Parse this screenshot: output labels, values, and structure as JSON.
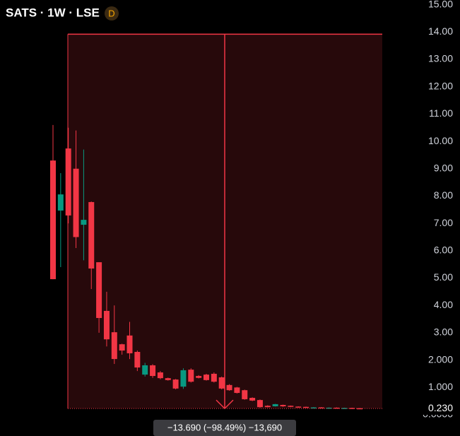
{
  "chart_data": {
    "type": "candlestick",
    "title": "SATS · 1W · LSE",
    "badge": "D",
    "up_color": "#089981",
    "down_color": "#f23645",
    "open": [
      9.3,
      7.47,
      9.74,
      9.0,
      6.95,
      7.78,
      5.58,
      3.8,
      3.02,
      2.58,
      2.9,
      2.3,
      1.47,
      1.81,
      1.55,
      1.34,
      1.29,
      1.03,
      1.65,
      1.42,
      1.47,
      1.5,
      1.37,
      1.09,
      1.0,
      0.9,
      0.62,
      0.54,
      0.33,
      0.31,
      0.36,
      0.33,
      0.3,
      0.29,
      0.27,
      0.27,
      0.26,
      0.26,
      0.25,
      0.25,
      0.24
    ],
    "high": [
      10.6,
      8.84,
      10.5,
      10.4,
      9.7,
      7.8,
      5.58,
      4.5,
      4.0,
      2.6,
      3.4,
      2.35,
      1.9,
      1.85,
      1.6,
      1.36,
      1.31,
      1.7,
      1.7,
      1.45,
      1.5,
      1.55,
      1.4,
      1.12,
      1.02,
      0.92,
      0.64,
      0.56,
      0.35,
      0.4,
      0.37,
      0.34,
      0.31,
      0.3,
      0.28,
      0.28,
      0.27,
      0.27,
      0.26,
      0.26,
      0.25
    ],
    "low": [
      4.96,
      5.4,
      7.0,
      6.1,
      5.65,
      4.6,
      3.0,
      2.5,
      1.86,
      2.2,
      2.04,
      1.6,
      1.4,
      1.35,
      1.3,
      1.25,
      0.93,
      0.95,
      1.18,
      1.33,
      1.25,
      1.18,
      0.93,
      0.88,
      0.78,
      0.55,
      0.5,
      0.26,
      0.27,
      0.3,
      0.29,
      0.28,
      0.27,
      0.26,
      0.25,
      0.25,
      0.24,
      0.24,
      0.23,
      0.23,
      0.22
    ],
    "close": [
      4.96,
      8.06,
      7.29,
      6.5,
      7.13,
      5.35,
      3.54,
      2.76,
      2.04,
      2.35,
      2.25,
      1.73,
      1.81,
      1.42,
      1.34,
      1.27,
      0.96,
      1.63,
      1.21,
      1.35,
      1.27,
      1.21,
      0.96,
      0.9,
      0.8,
      0.57,
      0.52,
      0.28,
      0.28,
      0.39,
      0.31,
      0.29,
      0.28,
      0.27,
      0.27,
      0.26,
      0.26,
      0.25,
      0.25,
      0.24,
      0.23
    ],
    "ylim": [
      0,
      15.17
    ],
    "yticks": [
      {
        "value": 15,
        "label": "15.00"
      },
      {
        "value": 14,
        "label": "14.00"
      },
      {
        "value": 13,
        "label": "13.00"
      },
      {
        "value": 12,
        "label": "12.00"
      },
      {
        "value": 11,
        "label": "11.00"
      },
      {
        "value": 10,
        "label": "10.00"
      },
      {
        "value": 9,
        "label": "9.00"
      },
      {
        "value": 8,
        "label": "8.00"
      },
      {
        "value": 7,
        "label": "7.00"
      },
      {
        "value": 6,
        "label": "6.00"
      },
      {
        "value": 5,
        "label": "5.00"
      },
      {
        "value": 4,
        "label": "4.00"
      },
      {
        "value": 3,
        "label": "3.00"
      },
      {
        "value": 2,
        "label": "2.000"
      },
      {
        "value": 1,
        "label": "1.000"
      },
      {
        "value": 0,
        "label": "0.0000"
      }
    ],
    "last_price": {
      "value": 0.23,
      "label": "0.230"
    },
    "measure": {
      "from": 13.92,
      "to": 0.23,
      "label": "−13.690 (−98.49%) −13,690"
    }
  }
}
